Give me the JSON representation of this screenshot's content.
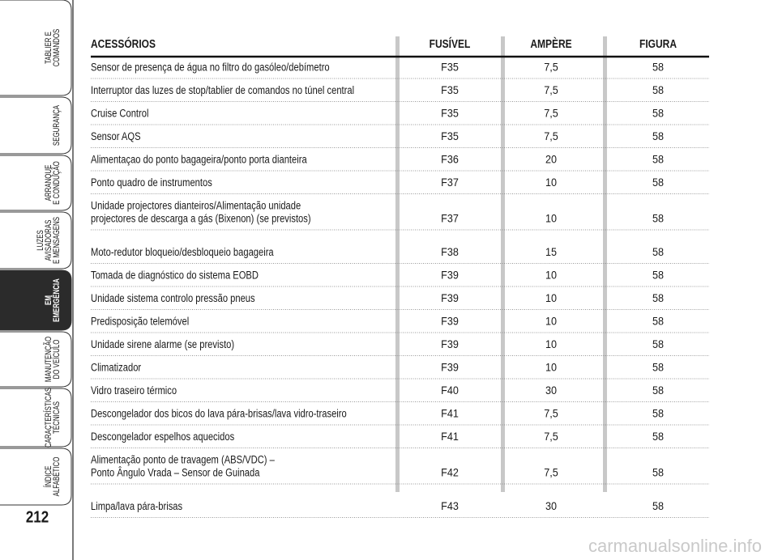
{
  "sidebar": {
    "tabs": [
      {
        "lines": [
          "TABLIER E",
          "COMANDOS"
        ],
        "active": false
      },
      {
        "lines": [
          "SEGURANÇA"
        ],
        "active": false
      },
      {
        "lines": [
          "ARRANQUE",
          "E CONDUÇÃO"
        ],
        "active": false
      },
      {
        "lines": [
          "LUZES",
          "AVISADORAS",
          "E MENSAGENS"
        ],
        "active": false
      },
      {
        "lines": [
          "EM",
          "EMERGÊNCIA"
        ],
        "active": true
      },
      {
        "lines": [
          "MANUTENÇÃO",
          "DO VEÍCULO"
        ],
        "active": false
      },
      {
        "lines": [
          "CARACTERÍSTICAS",
          "TÉCNICAS"
        ],
        "active": false
      },
      {
        "lines": [
          "ÍNDICE",
          "ALFABÉTICO"
        ],
        "active": false
      }
    ],
    "page_number": "212"
  },
  "table": {
    "header": [
      "ACESSÓRIOS",
      "FUSÍVEL",
      "AMPÈRE",
      "FIGURA"
    ],
    "rows": [
      {
        "accessory": [
          "Sensor de presença de água no filtro do gasóleo/debímetro"
        ],
        "fuse": "F35",
        "ampere": "7,5",
        "figure": "58"
      },
      {
        "accessory": [
          "Interruptor das luzes de stop/tablier de comandos no túnel central"
        ],
        "fuse": "F35",
        "ampere": "7,5",
        "figure": "58"
      },
      {
        "accessory": [
          "Cruise Control"
        ],
        "fuse": "F35",
        "ampere": "7,5",
        "figure": "58"
      },
      {
        "accessory": [
          "Sensor AQS"
        ],
        "fuse": "F35",
        "ampere": "7,5",
        "figure": "58"
      },
      {
        "accessory": [
          "Alimentaçao do ponto bagageira/ponto porta dianteira"
        ],
        "fuse": "F36",
        "ampere": "20",
        "figure": "58"
      },
      {
        "accessory": [
          "Ponto quadro de instrumentos"
        ],
        "fuse": "F37",
        "ampere": "10",
        "figure": "58"
      },
      {
        "accessory": [
          "Unidade projectores dianteiros/Alimentação unidade",
          "projectores de descarga a gás (Bixenon) (se previstos)"
        ],
        "fuse": "F37",
        "ampere": "10",
        "figure": "58"
      },
      {
        "accessory": [
          "Moto-redutor bloqueio/desbloqueio bagageira"
        ],
        "fuse": "F38",
        "ampere": "15",
        "figure": "58"
      },
      {
        "accessory": [
          "Tomada de diagnóstico do sistema EOBD"
        ],
        "fuse": "F39",
        "ampere": "10",
        "figure": "58"
      },
      {
        "accessory": [
          "Unidade sistema controlo pressão pneus"
        ],
        "fuse": "F39",
        "ampere": "10",
        "figure": "58"
      },
      {
        "accessory": [
          "Predisposição telemóvel"
        ],
        "fuse": "F39",
        "ampere": "10",
        "figure": "58"
      },
      {
        "accessory": [
          "Unidade sirene alarme (se previsto)"
        ],
        "fuse": "F39",
        "ampere": "10",
        "figure": "58"
      },
      {
        "accessory": [
          "Climatizador"
        ],
        "fuse": "F39",
        "ampere": "10",
        "figure": "58"
      },
      {
        "accessory": [
          "Vidro traseiro térmico"
        ],
        "fuse": "F40",
        "ampere": "30",
        "figure": "58"
      },
      {
        "accessory": [
          "Descongelador dos bicos do lava pára-brisas/lava vidro-traseiro"
        ],
        "fuse": "F41",
        "ampere": "7,5",
        "figure": "58"
      },
      {
        "accessory": [
          "Descongelador espelhos aquecidos"
        ],
        "fuse": "F41",
        "ampere": "7,5",
        "figure": "58"
      },
      {
        "accessory": [
          "Alimentação ponto de travagem (ABS/VDC) –",
          "Ponto Ângulo Vrada – Sensor de Guinada"
        ],
        "fuse": "F42",
        "ampere": "7,5",
        "figure": "58"
      },
      {
        "accessory": [
          "Limpa/lava pára-brisas"
        ],
        "fuse": "F43",
        "ampere": "30",
        "figure": "58"
      }
    ]
  },
  "watermark": "carmanualsonline.info"
}
